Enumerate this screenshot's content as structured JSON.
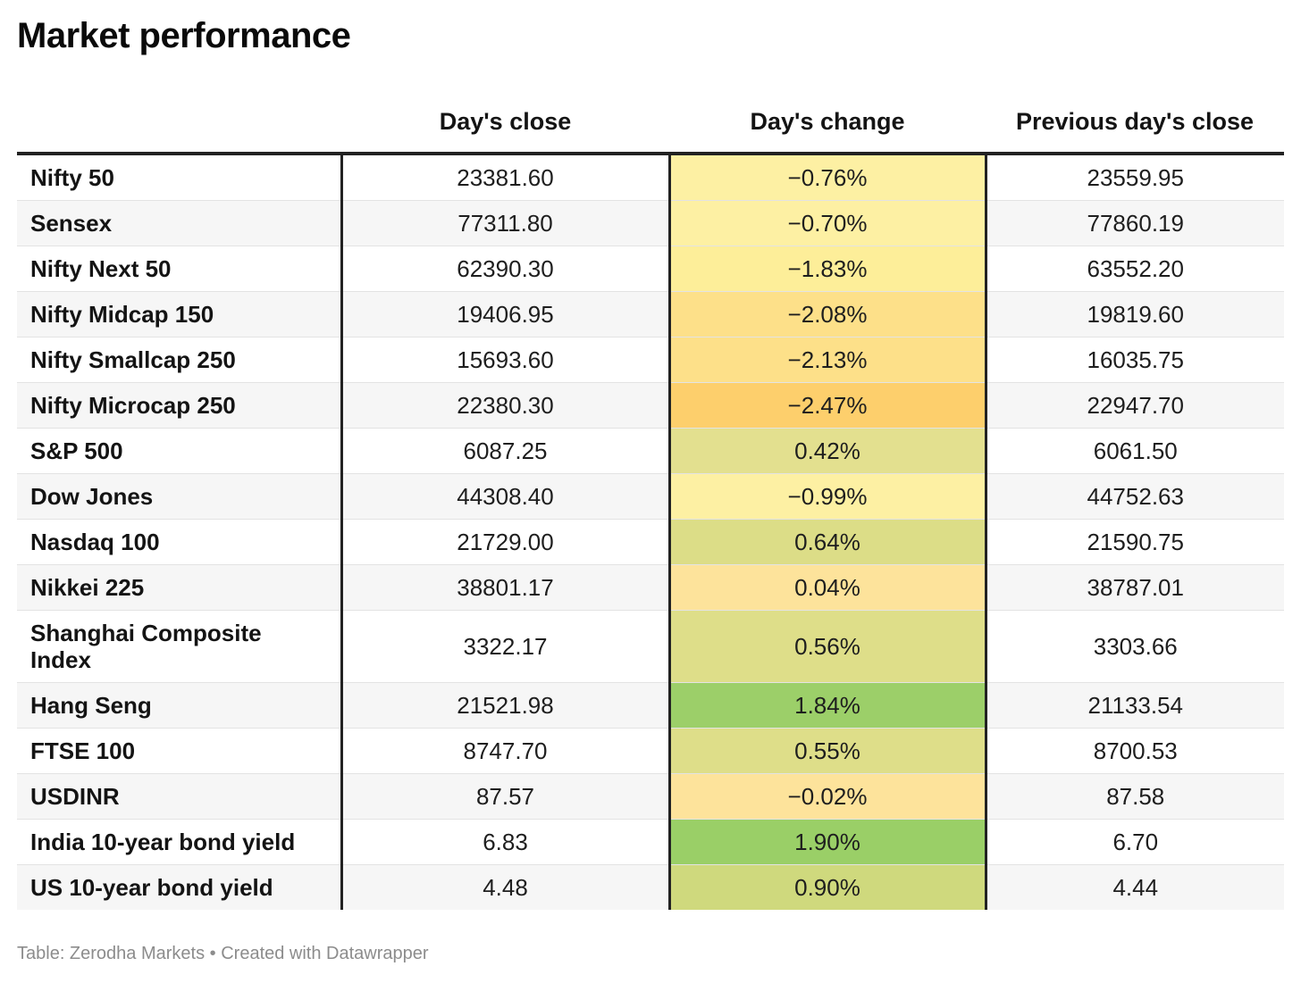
{
  "title": "Market performance",
  "footer": "Table: Zerodha Markets • Created with Datawrapper",
  "chart_data": {
    "type": "table",
    "title": "Market performance",
    "columns": [
      "",
      "Day's close",
      "Day's change",
      "Previous day's close"
    ],
    "rows": [
      {
        "name": "Nifty 50",
        "close": "23381.60",
        "change": "−0.76%",
        "prev": "23559.95",
        "color": "#fdf0a3"
      },
      {
        "name": "Sensex",
        "close": "77311.80",
        "change": "−0.70%",
        "prev": "77860.19",
        "color": "#fdf0a3"
      },
      {
        "name": "Nifty Next 50",
        "close": "62390.30",
        "change": "−1.83%",
        "prev": "63552.20",
        "color": "#fdee99"
      },
      {
        "name": "Nifty Midcap 150",
        "close": "19406.95",
        "change": "−2.08%",
        "prev": "19819.60",
        "color": "#fde089"
      },
      {
        "name": "Nifty Smallcap 250",
        "close": "15693.60",
        "change": "−2.13%",
        "prev": "16035.75",
        "color": "#fde089"
      },
      {
        "name": "Nifty Microcap 250",
        "close": "22380.30",
        "change": "−2.47%",
        "prev": "22947.70",
        "color": "#fdcf6c"
      },
      {
        "name": "S&P 500",
        "close": "6087.25",
        "change": "0.42%",
        "prev": "6061.50",
        "color": "#e3e08f"
      },
      {
        "name": "Dow Jones",
        "close": "44308.40",
        "change": "−0.99%",
        "prev": "44752.63",
        "color": "#fdf0a3"
      },
      {
        "name": "Nasdaq 100",
        "close": "21729.00",
        "change": "0.64%",
        "prev": "21590.75",
        "color": "#dcdd87"
      },
      {
        "name": "Nikkei 225",
        "close": "38801.17",
        "change": "0.04%",
        "prev": "38787.01",
        "color": "#fde39b"
      },
      {
        "name": "Shanghai Composite Index",
        "close": "3322.17",
        "change": "0.56%",
        "prev": "3303.66",
        "color": "#dede89"
      },
      {
        "name": "Hang Seng",
        "close": "21521.98",
        "change": "1.84%",
        "prev": "21133.54",
        "color": "#9ccf69"
      },
      {
        "name": "FTSE 100",
        "close": "8747.70",
        "change": "0.55%",
        "prev": "8700.53",
        "color": "#dede89"
      },
      {
        "name": "USDINR",
        "close": "87.57",
        "change": "−0.02%",
        "prev": "87.58",
        "color": "#fde39b"
      },
      {
        "name": "India 10-year bond yield",
        "close": "6.83",
        "change": "1.90%",
        "prev": "6.70",
        "color": "#9acf67"
      },
      {
        "name": "US 10-year bond yield",
        "close": "4.48",
        "change": "0.90%",
        "prev": "4.44",
        "color": "#cfd97d"
      }
    ]
  }
}
